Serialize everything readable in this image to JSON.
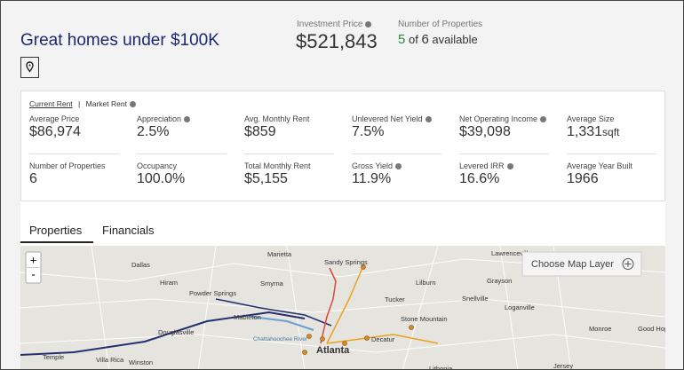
{
  "header": {
    "title": "Great homes under $100K",
    "investment_price_label": "Investment Price",
    "investment_price": "$521,843",
    "properties_label": "Number of Properties",
    "available_count": "5",
    "of_text": "of",
    "total_count": "6",
    "available_text": "available"
  },
  "rent_toggle": {
    "current": "Current Rent",
    "separator": "|",
    "market": "Market Rent"
  },
  "metrics": [
    {
      "label": "Average Price",
      "value": "$86,974"
    },
    {
      "label": "Appreciation",
      "value": "2.5%",
      "info": true
    },
    {
      "label": "Avg. Monthly Rent",
      "value": "$859"
    },
    {
      "label": "Unlevered Net Yield",
      "value": "7.5%",
      "info": true
    },
    {
      "label": "Net Operating Income",
      "value": "$39,098",
      "info": true
    },
    {
      "label": "Average Size",
      "value": "1,331",
      "unit": "sqft"
    },
    {
      "label": "Number of Properties",
      "value": "6"
    },
    {
      "label": "Occupancy",
      "value": "100.0%"
    },
    {
      "label": "Total Monthly Rent",
      "value": "$5,155"
    },
    {
      "label": "Gross Yield",
      "value": "11.9%",
      "info": true
    },
    {
      "label": "Levered IRR",
      "value": "16.6%",
      "info": true
    },
    {
      "label": "Average Year Built",
      "value": "1966"
    }
  ],
  "tabs": [
    "Properties",
    "Financials"
  ],
  "map": {
    "layer_button": "Choose Map Layer",
    "zoom_in": "+",
    "zoom_out": "-",
    "places": [
      "Marietta",
      "Sandy Springs",
      "Lawrenceville",
      "Dallas",
      "Smyrna",
      "Lilburn",
      "Grayson",
      "Hiram",
      "Powder Springs",
      "Tucker",
      "Snellville",
      "Mableton",
      "Loganville",
      "Stone Mountain",
      "Douglasville",
      "Atlanta",
      "Decatur",
      "Monroe",
      "Good Hope",
      "Temple",
      "Villa Rica",
      "Winston",
      "Lithonia",
      "Jersey",
      "Chattahoochee River"
    ]
  }
}
